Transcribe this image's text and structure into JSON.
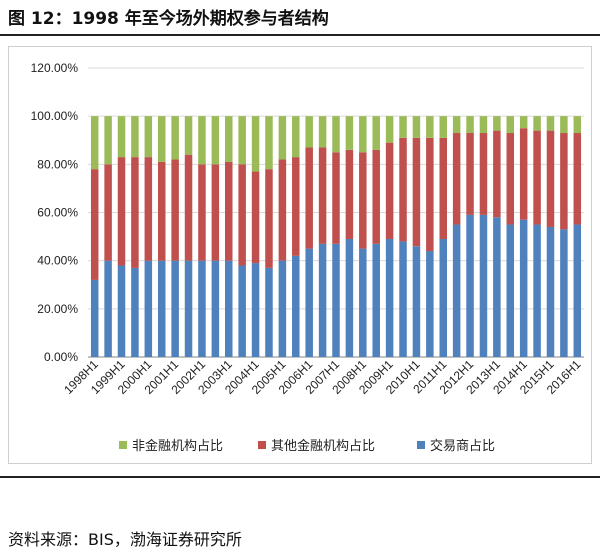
{
  "figure": {
    "title": "图 12：1998 年至今场外期权参与者结构",
    "source": "资料来源：BIS，渤海证券研究所"
  },
  "chart_data": {
    "type": "bar",
    "stacked": true,
    "categories": [
      "1998H1",
      "1998H2",
      "1999H1",
      "1999H2",
      "2000H1",
      "2000H2",
      "2001H1",
      "2001H2",
      "2002H1",
      "2002H2",
      "2003H1",
      "2003H2",
      "2004H1",
      "2004H2",
      "2005H1",
      "2005H2",
      "2006H1",
      "2006H2",
      "2007H1",
      "2007H2",
      "2008H1",
      "2008H2",
      "2009H1",
      "2009H2",
      "2010H1",
      "2010H2",
      "2011H1",
      "2011H2",
      "2012H1",
      "2012H2",
      "2013H1",
      "2013H2",
      "2014H1",
      "2014H2",
      "2015H1",
      "2015H2",
      "2016H1"
    ],
    "x_tick_labels": [
      "1998H1",
      "1999H1",
      "2000H1",
      "2001H1",
      "2002H1",
      "2003H1",
      "2004H1",
      "2005H1",
      "2006H1",
      "2007H1",
      "2008H1",
      "2009H1",
      "2010H1",
      "2011H1",
      "2012H1",
      "2013H1",
      "2014H1",
      "2015H1",
      "2016H1"
    ],
    "y_ticks": [
      "0.00%",
      "20.00%",
      "40.00%",
      "60.00%",
      "80.00%",
      "100.00%",
      "120.00%"
    ],
    "ylim": [
      0,
      120
    ],
    "grid": true,
    "legend_position": "bottom",
    "series": [
      {
        "name": "交易商占比",
        "color": "#4f81bd",
        "values": [
          32,
          40,
          38,
          37,
          40,
          40,
          40,
          40,
          40,
          40,
          40,
          38,
          39,
          37,
          40,
          42,
          45,
          47,
          47,
          49,
          45,
          47,
          49,
          48,
          46,
          44,
          49,
          55,
          59,
          59,
          58,
          55,
          57,
          55,
          54,
          53,
          55
        ]
      },
      {
        "name": "其他金融机构占比",
        "color": "#c0504d",
        "values": [
          46,
          40,
          45,
          46,
          43,
          41,
          42,
          44,
          40,
          40,
          41,
          42,
          38,
          41,
          42,
          41,
          42,
          40,
          38,
          37,
          40,
          39,
          40,
          43,
          45,
          47,
          42,
          38,
          34,
          34,
          36,
          38,
          38,
          39,
          40,
          40,
          38
        ]
      },
      {
        "name": "非金融机构占比",
        "color": "#9bbb59",
        "values": [
          22,
          20,
          17,
          17,
          17,
          19,
          18,
          16,
          20,
          20,
          19,
          20,
          23,
          22,
          18,
          17,
          13,
          13,
          15,
          14,
          15,
          14,
          11,
          9,
          9,
          9,
          9,
          7,
          7,
          7,
          6,
          7,
          5,
          6,
          6,
          7,
          7
        ]
      }
    ],
    "legend_order": [
      "非金融机构占比",
      "其他金融机构占比",
      "交易商占比"
    ],
    "xlabel": "",
    "ylabel": ""
  }
}
